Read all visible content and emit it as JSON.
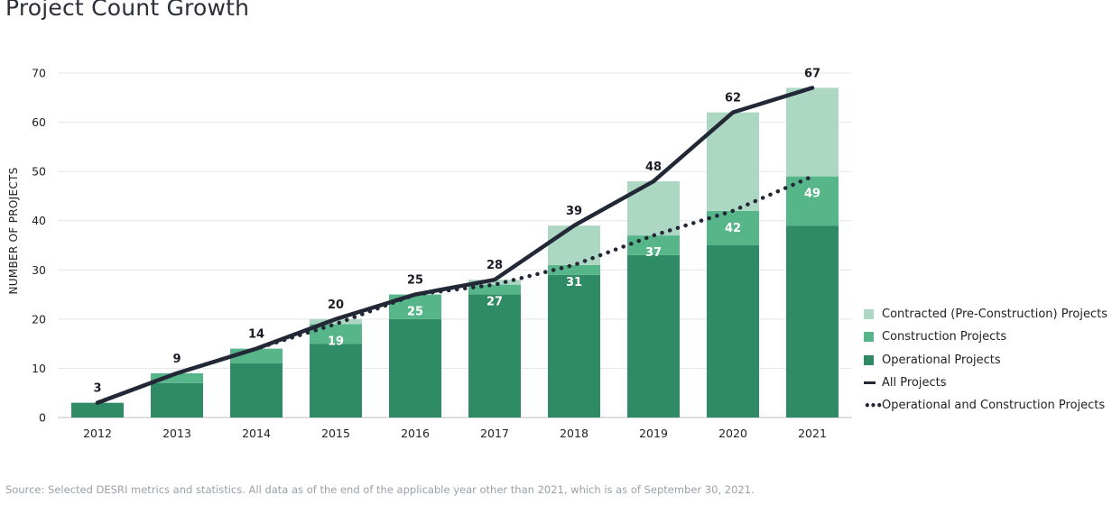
{
  "title": "Project Count Growth",
  "source": "Source: Selected DESRI metrics and statistics. All data as of the end of the applicable year other than 2021, which is as of September 30, 2021.",
  "colors": {
    "contracted": "#acd8c3",
    "construction": "#57b58a",
    "operational": "#2f8b65",
    "line": "#232836",
    "grid": "#e4e4e4"
  },
  "chart_data": {
    "type": "bar",
    "stacked": true,
    "categories": [
      "2012",
      "2013",
      "2014",
      "2015",
      "2016",
      "2017",
      "2018",
      "2019",
      "2020",
      "2021"
    ],
    "ylabel": "NUMBER OF PROJECTS",
    "xlabel": "",
    "ylim": [
      0,
      70
    ],
    "yticks": [
      0,
      10,
      20,
      30,
      40,
      50,
      60,
      70
    ],
    "grid": true,
    "legend_position": "right",
    "series": [
      {
        "name": "Operational Projects",
        "kind": "bar",
        "values": [
          3,
          7,
          11,
          15,
          20,
          25,
          29,
          33,
          35,
          39
        ]
      },
      {
        "name": "Construction Projects",
        "kind": "bar",
        "values": [
          0,
          2,
          3,
          4,
          5,
          2,
          2,
          4,
          7,
          10
        ]
      },
      {
        "name": "Contracted (Pre-Construction) Projects",
        "kind": "bar",
        "values": [
          0,
          0,
          0,
          1,
          0,
          1,
          8,
          11,
          20,
          18
        ]
      },
      {
        "name": "All Projects",
        "kind": "line",
        "style": "solid",
        "values": [
          3,
          9,
          14,
          20,
          25,
          28,
          39,
          48,
          62,
          67
        ]
      },
      {
        "name": "Operational and Construction Projects",
        "kind": "line",
        "style": "dotted",
        "values": [
          3,
          9,
          14,
          19,
          25,
          27,
          31,
          37,
          42,
          49
        ]
      }
    ],
    "total_labels": [
      "3",
      "9",
      "14",
      "20",
      "25",
      "28",
      "39",
      "48",
      "62",
      "67"
    ],
    "op_con_labels": [
      "",
      "",
      "",
      "19",
      "25",
      "27",
      "31",
      "37",
      "42",
      "49"
    ]
  },
  "legend": [
    {
      "label": "Contracted (Pre-Construction) Projects",
      "swatch": "box",
      "color_key": "contracted"
    },
    {
      "label": "Construction Projects",
      "swatch": "box",
      "color_key": "construction"
    },
    {
      "label": "Operational Projects",
      "swatch": "box",
      "color_key": "operational"
    },
    {
      "label": "All Projects",
      "swatch": "line",
      "color_key": "line"
    },
    {
      "label": "Operational and Construction Projects",
      "swatch": "dots",
      "color_key": "line"
    }
  ]
}
